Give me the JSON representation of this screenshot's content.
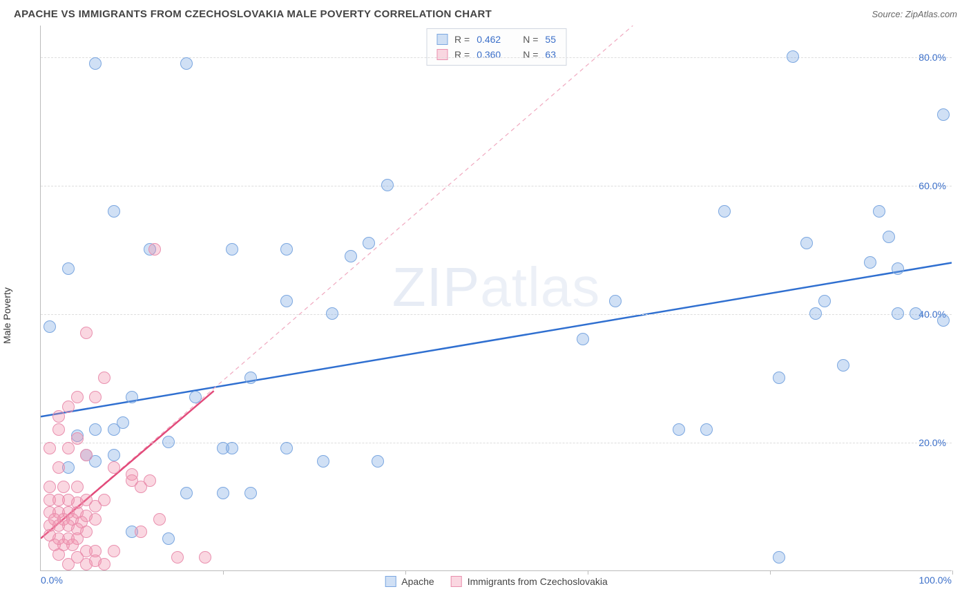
{
  "title": "APACHE VS IMMIGRANTS FROM CZECHOSLOVAKIA MALE POVERTY CORRELATION CHART",
  "source": "Source: ZipAtlas.com",
  "ylabel": "Male Poverty",
  "watermark_a": "ZIP",
  "watermark_b": "atlas",
  "chart": {
    "type": "scatter",
    "xlim": [
      0,
      100
    ],
    "ylim": [
      0,
      85
    ],
    "xticks_labels": {
      "left": "0.0%",
      "right": "100.0%"
    },
    "xtick_positions": [
      0,
      20,
      40,
      60,
      80,
      100
    ],
    "yticks": [
      {
        "v": 20,
        "label": "20.0%"
      },
      {
        "v": 40,
        "label": "40.0%"
      },
      {
        "v": 60,
        "label": "60.0%"
      },
      {
        "v": 80,
        "label": "80.0%"
      }
    ],
    "grid_color": "#dddddd",
    "axis_color": "#bbbbbb",
    "background_color": "#ffffff",
    "point_radius": 9,
    "point_border_width": 1,
    "series": [
      {
        "name": "Apache",
        "fill": "rgba(120,165,225,0.35)",
        "stroke": "#7aa6e0",
        "trend": {
          "x1": 0,
          "y1": 24,
          "x2": 100,
          "y2": 48,
          "color": "#2f6fd0",
          "width": 2.5,
          "dash": ""
        },
        "points": [
          [
            6,
            79
          ],
          [
            16,
            79
          ],
          [
            82.5,
            80
          ],
          [
            99,
            71
          ],
          [
            8,
            56
          ],
          [
            38,
            60
          ],
          [
            3,
            47
          ],
          [
            12,
            50
          ],
          [
            21,
            50
          ],
          [
            27,
            50
          ],
          [
            36,
            51
          ],
          [
            84,
            51
          ],
          [
            75,
            56
          ],
          [
            92,
            56
          ],
          [
            34,
            49
          ],
          [
            91,
            48
          ],
          [
            93,
            52
          ],
          [
            63,
            42
          ],
          [
            86,
            42
          ],
          [
            94,
            47
          ],
          [
            27,
            42
          ],
          [
            99,
            39
          ],
          [
            1,
            38
          ],
          [
            94,
            40
          ],
          [
            85,
            40
          ],
          [
            96,
            40
          ],
          [
            59.5,
            36
          ],
          [
            88,
            32
          ],
          [
            81,
            30
          ],
          [
            10,
            27
          ],
          [
            17,
            27
          ],
          [
            23,
            30
          ],
          [
            32,
            40
          ],
          [
            9,
            23
          ],
          [
            70,
            22
          ],
          [
            73,
            22
          ],
          [
            20,
            19
          ],
          [
            21,
            19
          ],
          [
            27,
            19
          ],
          [
            14,
            20
          ],
          [
            31,
            17
          ],
          [
            37,
            17
          ],
          [
            16,
            12
          ],
          [
            20,
            12
          ],
          [
            23,
            12
          ],
          [
            10,
            6
          ],
          [
            14,
            5
          ],
          [
            81,
            2
          ],
          [
            4,
            21
          ],
          [
            6,
            22
          ],
          [
            8,
            22
          ],
          [
            3,
            16
          ],
          [
            5,
            18
          ],
          [
            6,
            17
          ],
          [
            8,
            18
          ]
        ]
      },
      {
        "name": "Immigrants from Czechoslovakia",
        "fill": "rgba(240,140,170,0.35)",
        "stroke": "#e98fae",
        "trend": {
          "x1": 0,
          "y1": 5,
          "x2": 19,
          "y2": 28,
          "color": "#e24a7a",
          "width": 2.5,
          "dash": ""
        },
        "ref_line": {
          "x1": 0,
          "y1": 5,
          "x2": 65,
          "y2": 85,
          "color": "#f0a8bf",
          "width": 1.2,
          "dash": "6,5"
        },
        "points": [
          [
            12.5,
            50
          ],
          [
            5,
            37
          ],
          [
            7,
            30
          ],
          [
            4,
            27
          ],
          [
            6,
            27
          ],
          [
            2,
            24
          ],
          [
            3,
            25.5
          ],
          [
            2,
            22
          ],
          [
            4,
            20.5
          ],
          [
            1,
            19
          ],
          [
            3,
            19
          ],
          [
            5,
            18
          ],
          [
            2,
            16
          ],
          [
            8,
            16
          ],
          [
            10,
            15
          ],
          [
            12,
            14
          ],
          [
            1,
            13
          ],
          [
            2.5,
            13
          ],
          [
            4,
            13
          ],
          [
            10,
            14
          ],
          [
            11,
            13
          ],
          [
            1,
            11
          ],
          [
            2,
            11
          ],
          [
            3,
            11
          ],
          [
            4,
            10.5
          ],
          [
            5,
            11
          ],
          [
            6,
            10
          ],
          [
            7,
            11
          ],
          [
            1,
            9
          ],
          [
            2,
            9
          ],
          [
            3,
            9
          ],
          [
            4,
            9
          ],
          [
            5,
            8.5
          ],
          [
            6,
            8
          ],
          [
            1.5,
            8
          ],
          [
            2.5,
            8
          ],
          [
            3.5,
            8
          ],
          [
            4.5,
            7.5
          ],
          [
            1,
            7
          ],
          [
            2,
            7
          ],
          [
            3,
            7
          ],
          [
            4,
            6.5
          ],
          [
            5,
            6
          ],
          [
            1,
            5.5
          ],
          [
            2,
            5
          ],
          [
            3,
            5
          ],
          [
            4,
            5
          ],
          [
            1.5,
            4
          ],
          [
            2.5,
            4
          ],
          [
            3.5,
            4
          ],
          [
            5,
            3
          ],
          [
            6,
            3
          ],
          [
            8,
            3
          ],
          [
            2,
            2.5
          ],
          [
            4,
            2
          ],
          [
            6,
            1.5
          ],
          [
            7,
            1
          ],
          [
            3,
            1
          ],
          [
            5,
            1
          ],
          [
            11,
            6
          ],
          [
            13,
            8
          ],
          [
            15,
            2
          ],
          [
            18,
            2
          ]
        ]
      }
    ],
    "legend_top": [
      {
        "swatch_fill": "rgba(120,165,225,0.35)",
        "swatch_stroke": "#7aa6e0",
        "r_label": "R =",
        "r": "0.462",
        "n_label": "N =",
        "n": "55"
      },
      {
        "swatch_fill": "rgba(240,140,170,0.35)",
        "swatch_stroke": "#e98fae",
        "r_label": "R =",
        "r": "0.360",
        "n_label": "N =",
        "n": "63"
      }
    ],
    "legend_bottom": [
      {
        "swatch_fill": "rgba(120,165,225,0.35)",
        "swatch_stroke": "#7aa6e0",
        "label": "Apache"
      },
      {
        "swatch_fill": "rgba(240,140,170,0.35)",
        "swatch_stroke": "#e98fae",
        "label": "Immigrants from Czechoslovakia"
      }
    ]
  }
}
